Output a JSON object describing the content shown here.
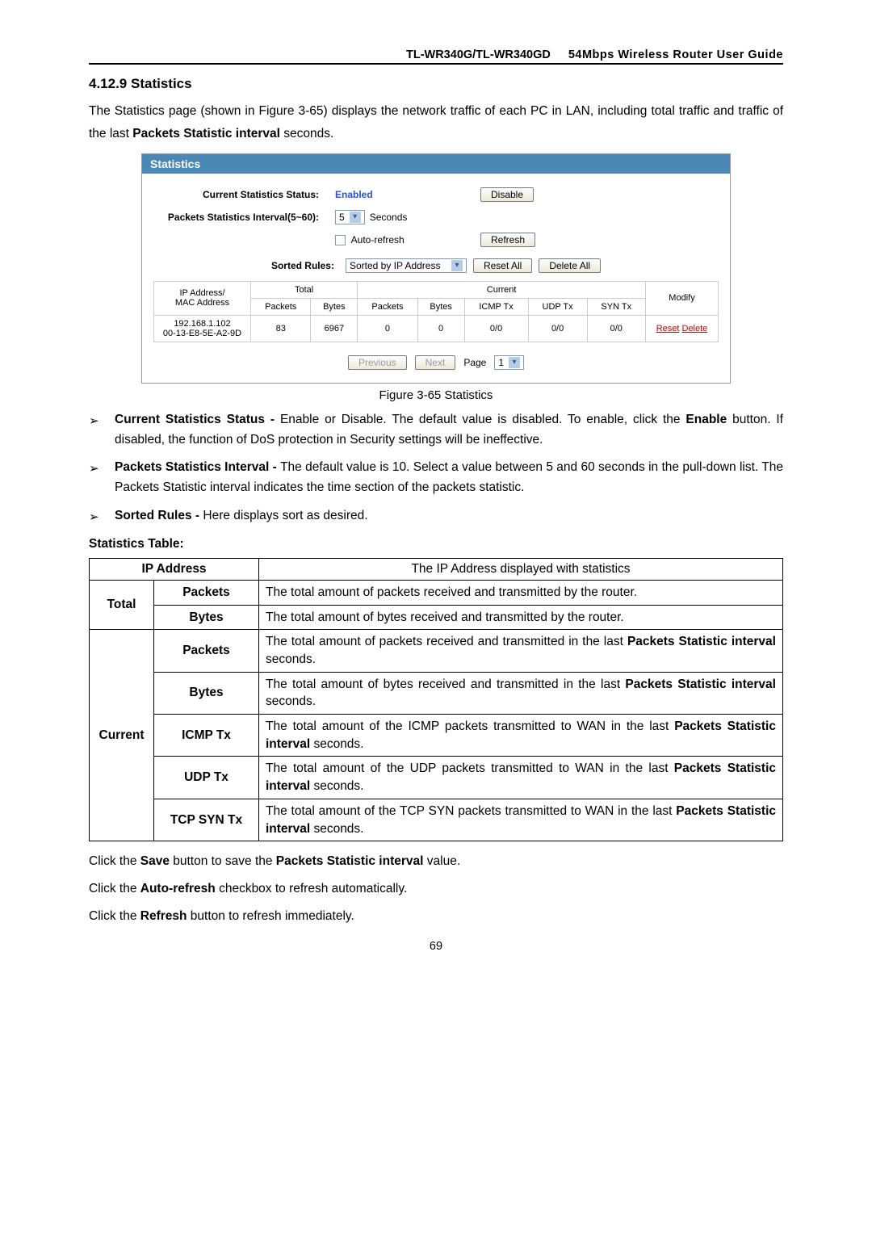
{
  "header": {
    "model": "TL-WR340G/TL-WR340GD",
    "guide": "54Mbps  Wireless  Router  User  Guide"
  },
  "section_title": "4.12.9  Statistics",
  "intro": "The Statistics page (shown in Figure 3-65) displays the network traffic of each PC in LAN, including total traffic and traffic of the last ",
  "intro_bold": "Packets Statistic interval",
  "intro_tail": " seconds.",
  "shot": {
    "title": "Statistics",
    "status_label": "Current Statistics Status:",
    "status_value": "Enabled",
    "disable_btn": "Disable",
    "interval_label": "Packets Statistics Interval(5~60):",
    "interval_value": "5",
    "interval_unit": "Seconds",
    "autorefresh": "Auto-refresh",
    "refresh_btn": "Refresh",
    "sorted_label": "Sorted Rules:",
    "sorted_value": "Sorted by IP Address",
    "reset_all": "Reset All",
    "delete_all": "Delete All",
    "cols": {
      "ipmac": "IP Address/\nMAC Address",
      "total": "Total",
      "current": "Current",
      "packets": "Packets",
      "bytes": "Bytes",
      "icmp": "ICMP Tx",
      "udp": "UDP Tx",
      "syn": "SYN Tx",
      "modify": "Modify"
    },
    "row": {
      "ip": "192.168.1.102",
      "mac": "00-13-E8-5E-A2-9D",
      "t_packets": "83",
      "t_bytes": "6967",
      "c_packets": "0",
      "c_bytes": "0",
      "icmp": "0/0",
      "udp": "0/0",
      "syn": "0/0",
      "reset": "Reset",
      "delete": "Delete"
    },
    "prev": "Previous",
    "next": "Next",
    "page_label": "Page",
    "page_value": "1"
  },
  "figure_caption": "Figure 3-65 Statistics",
  "bullets": [
    {
      "boldlead": "Current Statistics Status - ",
      "text1": "Enable or Disable. The default value is disabled. To enable, click the ",
      "bold2": "Enable",
      "text2": " button. If disabled, the function of DoS protection in Security settings will be ineffective."
    },
    {
      "boldlead": "Packets Statistics Interval - ",
      "text1": "The default value is 10. Select a value between 5 and 60 seconds in the pull-down list. The Packets Statistic interval indicates the time section of the packets statistic.",
      "bold2": "",
      "text2": ""
    },
    {
      "boldlead": "Sorted Rules - ",
      "text1": "Here displays sort as desired.",
      "bold2": "",
      "text2": ""
    }
  ],
  "table_heading": "Statistics Table:",
  "desc_table": {
    "ip_label": "IP Address",
    "ip_desc": "The IP Address displayed with statistics",
    "groups": [
      {
        "cat": "Total",
        "rows": [
          {
            "metric": "Packets",
            "desc": "The total amount of packets received and transmitted by the router."
          },
          {
            "metric": "Bytes",
            "desc": "The total amount of bytes received and transmitted by the router."
          }
        ]
      },
      {
        "cat": "Current",
        "rows": [
          {
            "metric": "Packets",
            "desc_pre": "The total amount of packets received and transmitted in the last ",
            "desc_bold": "Packets Statistic interval",
            "desc_post": " seconds."
          },
          {
            "metric": "Bytes",
            "desc_pre": "The total amount of bytes received and transmitted in the last ",
            "desc_bold": "Packets Statistic interval",
            "desc_post": " seconds."
          },
          {
            "metric": "ICMP Tx",
            "desc_pre": "The total amount of the ICMP packets transmitted to WAN in the last ",
            "desc_bold": "Packets Statistic interval",
            "desc_post": " seconds."
          },
          {
            "metric": "UDP Tx",
            "desc_pre": "The total amount of the UDP packets transmitted to WAN in the last ",
            "desc_bold": "Packets Statistic interval",
            "desc_post": " seconds."
          },
          {
            "metric": "TCP SYN Tx",
            "desc_pre": "The total amount of the TCP SYN packets transmitted to WAN in the last ",
            "desc_bold": "Packets Statistic interval",
            "desc_post": " seconds."
          }
        ]
      }
    ]
  },
  "footers": [
    {
      "p1": "Click the ",
      "b1": "Save",
      "p2": " button to save the ",
      "b2": "Packets Statistic interval",
      "p3": " value."
    },
    {
      "p1": "Click the ",
      "b1": "Auto-refresh",
      "p2": " checkbox to refresh automatically.",
      "b2": "",
      "p3": ""
    },
    {
      "p1": "Click the ",
      "b1": "Refresh",
      "p2": " button to refresh immediately.",
      "b2": "",
      "p3": ""
    }
  ],
  "page_num": "69"
}
